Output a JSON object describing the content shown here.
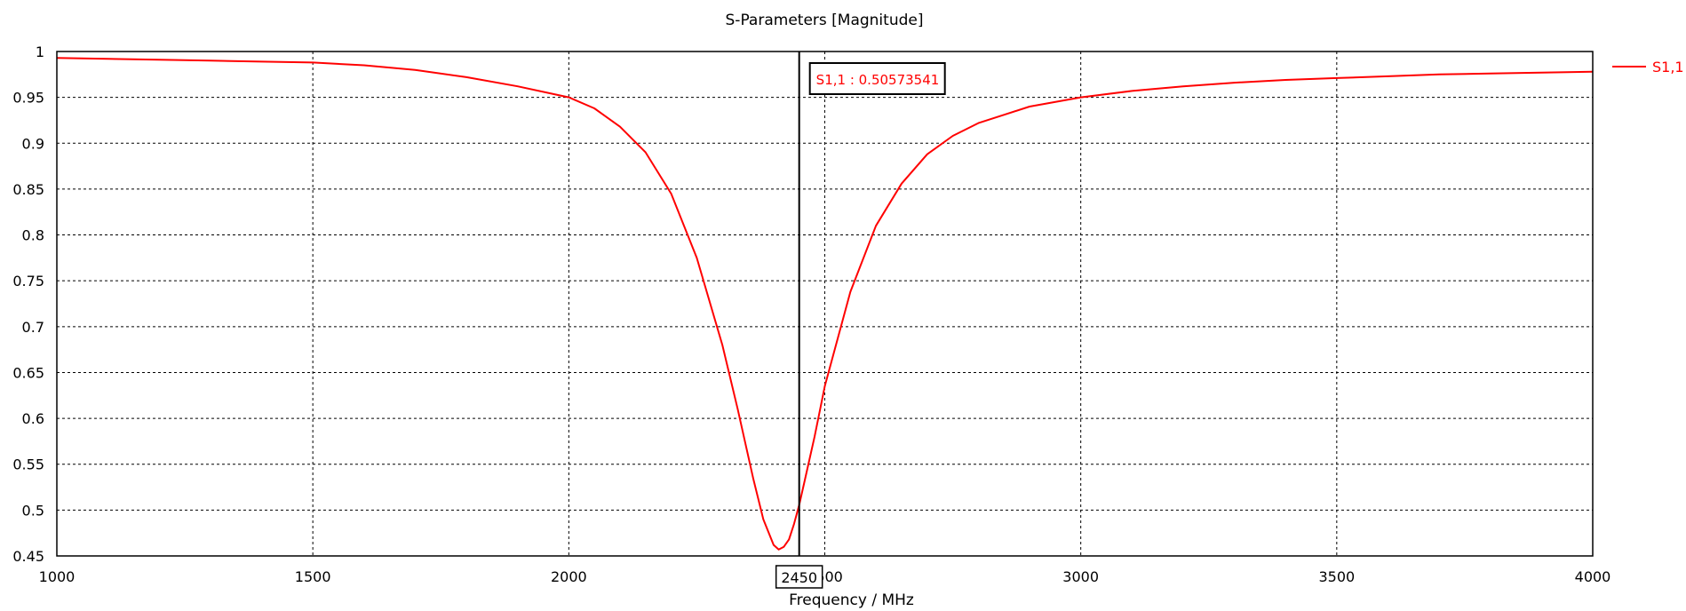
{
  "chart_data": {
    "type": "line",
    "title": "S-Parameters [Magnitude]",
    "xlabel": "Frequency / MHz",
    "ylabel": "",
    "xlim": [
      1000,
      4000
    ],
    "ylim": [
      0.45,
      1.0
    ],
    "x_ticks": [
      1000,
      1500,
      2000,
      2500,
      3000,
      3500,
      4000
    ],
    "y_ticks": [
      0.45,
      0.5,
      0.55,
      0.6,
      0.65,
      0.7,
      0.75,
      0.8,
      0.85,
      0.9,
      0.95,
      1
    ],
    "grid": true,
    "legend_position": "right",
    "series": [
      {
        "name": "S1,1",
        "color": "#ff0000",
        "x": [
          1000,
          1100,
          1200,
          1300,
          1400,
          1500,
          1600,
          1700,
          1800,
          1900,
          2000,
          2050,
          2100,
          2150,
          2200,
          2250,
          2300,
          2330,
          2360,
          2380,
          2400,
          2410,
          2420,
          2430,
          2440,
          2450,
          2460,
          2480,
          2500,
          2550,
          2600,
          2650,
          2700,
          2750,
          2800,
          2900,
          3000,
          3100,
          3200,
          3300,
          3400,
          3500,
          3600,
          3700,
          3800,
          3900,
          4000
        ],
        "y": [
          0.993,
          0.992,
          0.991,
          0.99,
          0.989,
          0.988,
          0.985,
          0.98,
          0.972,
          0.962,
          0.95,
          0.938,
          0.918,
          0.89,
          0.845,
          0.775,
          0.68,
          0.61,
          0.535,
          0.49,
          0.462,
          0.457,
          0.46,
          0.468,
          0.485,
          0.5057,
          0.53,
          0.58,
          0.635,
          0.738,
          0.81,
          0.856,
          0.888,
          0.908,
          0.922,
          0.94,
          0.95,
          0.957,
          0.962,
          0.966,
          0.969,
          0.971,
          0.973,
          0.975,
          0.976,
          0.977,
          0.978
        ]
      }
    ],
    "marker": {
      "x_label": "2450",
      "x": 2450,
      "label": "S1,1 : 0.50573541",
      "value": 0.50573541
    }
  }
}
